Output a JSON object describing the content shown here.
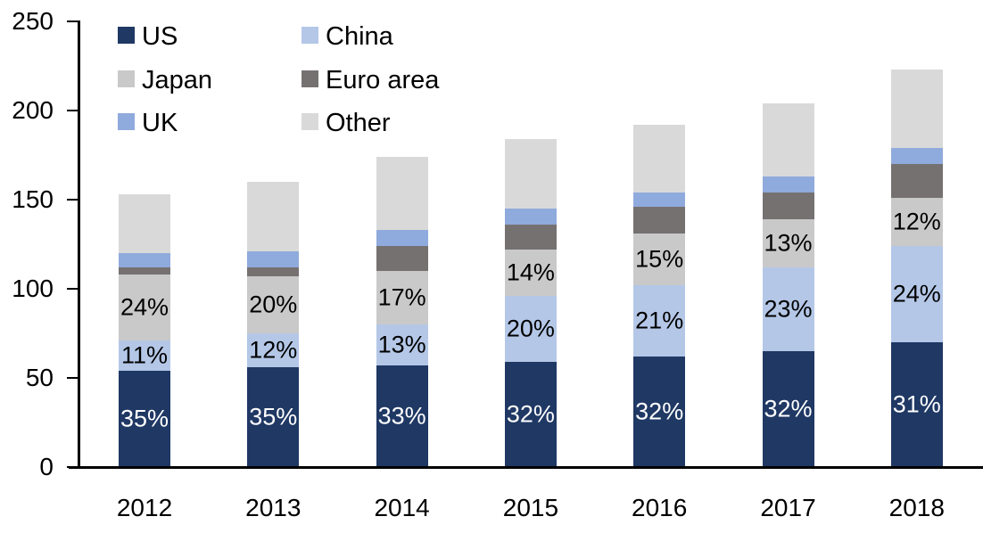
{
  "chart_data": {
    "type": "bar",
    "stacked": true,
    "title": "",
    "xlabel": "",
    "ylabel": "",
    "ylim": [
      0,
      250
    ],
    "yticks": [
      0,
      50,
      100,
      150,
      200,
      250
    ],
    "grid": false,
    "background": "#ffffff",
    "axis_color": "#000000",
    "categories": [
      "2012",
      "2013",
      "2014",
      "2015",
      "2016",
      "2017",
      "2018"
    ],
    "totals": [
      153,
      160,
      174,
      184,
      192,
      204,
      223
    ],
    "series": [
      {
        "name": "US",
        "color": "#1f3864",
        "values": [
          54,
          56,
          57,
          59,
          62,
          65,
          70
        ],
        "labels": [
          "35%",
          "35%",
          "33%",
          "32%",
          "32%",
          "32%",
          "31%"
        ],
        "label_color": "#ffffff"
      },
      {
        "name": "China",
        "color": "#b4c7e7",
        "values": [
          17,
          19,
          23,
          37,
          40,
          47,
          54
        ],
        "labels": [
          "11%",
          "12%",
          "13%",
          "20%",
          "21%",
          "23%",
          "24%"
        ],
        "label_color": "#000000"
      },
      {
        "name": "Japan",
        "color": "#c9c9c9",
        "values": [
          37,
          32,
          30,
          26,
          29,
          27,
          27
        ],
        "labels": [
          "24%",
          "20%",
          "17%",
          "14%",
          "15%",
          "13%",
          "12%"
        ],
        "label_color": "#000000"
      },
      {
        "name": "Euro area",
        "color": "#767171",
        "values": [
          4,
          5,
          14,
          14,
          15,
          15,
          19
        ],
        "labels": null,
        "label_color": null
      },
      {
        "name": "UK",
        "color": "#8faadc",
        "values": [
          8,
          9,
          9,
          9,
          8,
          9,
          9
        ],
        "labels": null,
        "label_color": null
      },
      {
        "name": "Other",
        "color": "#d9d9d9",
        "values": [
          33,
          39,
          41,
          39,
          38,
          41,
          44
        ],
        "labels": null,
        "label_color": null
      }
    ],
    "legend": {
      "position": "top-left",
      "rows": [
        [
          "US",
          "China"
        ],
        [
          "Japan",
          "Euro area"
        ],
        [
          "UK",
          "Other"
        ]
      ]
    }
  }
}
